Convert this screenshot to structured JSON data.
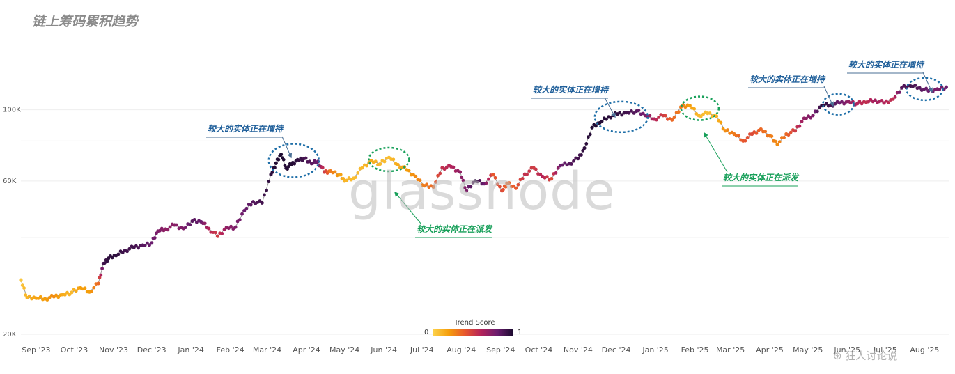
{
  "title": "链上筹码累积趋势",
  "watermark": "glassnode",
  "corner_mark": "⊛ 狂人讨论说",
  "legend": {
    "title": "Trend Score",
    "min_label": "0",
    "max_label": "1"
  },
  "chart_data": {
    "type": "scatter",
    "y_scale": "log",
    "ylim": [
      20000,
      130000
    ],
    "y_ticks": [
      {
        "value": 20000,
        "label": "20K"
      },
      {
        "value": 60000,
        "label": "60K"
      },
      {
        "value": 100000,
        "label": "100K"
      }
    ],
    "x_ticks": [
      "Sep '23",
      "Oct '23",
      "Nov '23",
      "Dec '23",
      "Jan '24",
      "Feb '24",
      "Mar '24",
      "Apr '24",
      "May '24",
      "Jun '24",
      "Jul '24",
      "Aug '24",
      "Sep '24",
      "Oct '24",
      "Nov '24",
      "Dec '24",
      "Jan '25",
      "Feb '25",
      "Mar '25",
      "Apr '25",
      "May '25",
      "Jun '25",
      "Jul '25",
      "Aug '25"
    ],
    "xlim": [
      "2023-08-20",
      "2025-08-20"
    ],
    "color_scale": [
      "#fcd34d",
      "#f59e0b",
      "#e8572d",
      "#b4235a",
      "#6b1c6e",
      "#1a0a2e"
    ],
    "series": [
      {
        "x": [
          "2023-08-20",
          "2023-08-25",
          "2023-09-01",
          "2023-09-08",
          "2023-09-15",
          "2023-09-22",
          "2023-09-29",
          "2023-10-06",
          "2023-10-13",
          "2023-10-20",
          "2023-10-24",
          "2023-10-28",
          "2023-11-03",
          "2023-11-10",
          "2023-11-17",
          "2023-11-24",
          "2023-12-01",
          "2023-12-06",
          "2023-12-12",
          "2023-12-19",
          "2023-12-26",
          "2024-01-02",
          "2024-01-09",
          "2024-01-15",
          "2024-01-22",
          "2024-01-29",
          "2024-02-05",
          "2024-02-12",
          "2024-02-19",
          "2024-02-26",
          "2024-03-04",
          "2024-03-08",
          "2024-03-12",
          "2024-03-16",
          "2024-03-20",
          "2024-03-25",
          "2024-03-30",
          "2024-04-05",
          "2024-04-10",
          "2024-04-15",
          "2024-04-20",
          "2024-04-27",
          "2024-05-01",
          "2024-05-08",
          "2024-05-15",
          "2024-05-22",
          "2024-05-29",
          "2024-06-05",
          "2024-06-12",
          "2024-06-19",
          "2024-06-26",
          "2024-07-03",
          "2024-07-10",
          "2024-07-17",
          "2024-07-24",
          "2024-07-31",
          "2024-08-05",
          "2024-08-12",
          "2024-08-19",
          "2024-08-26",
          "2024-09-02",
          "2024-09-06",
          "2024-09-13",
          "2024-09-20",
          "2024-09-27",
          "2024-10-04",
          "2024-10-11",
          "2024-10-18",
          "2024-10-25",
          "2024-11-01",
          "2024-11-06",
          "2024-11-12",
          "2024-11-18",
          "2024-11-25",
          "2024-12-02",
          "2024-12-09",
          "2024-12-17",
          "2024-12-24",
          "2024-12-31",
          "2025-01-07",
          "2025-01-14",
          "2025-01-21",
          "2025-01-28",
          "2025-02-04",
          "2025-02-11",
          "2025-02-18",
          "2025-02-25",
          "2025-03-04",
          "2025-03-11",
          "2025-03-18",
          "2025-03-25",
          "2025-04-01",
          "2025-04-07",
          "2025-04-14",
          "2025-04-21",
          "2025-04-28",
          "2025-05-05",
          "2025-05-12",
          "2025-05-19",
          "2025-05-26",
          "2025-06-02",
          "2025-06-09",
          "2025-06-16",
          "2025-06-23",
          "2025-06-30",
          "2025-07-07",
          "2025-07-14",
          "2025-07-21",
          "2025-07-28",
          "2025-08-04",
          "2025-08-11",
          "2025-08-18"
        ],
        "y": [
          29500,
          26000,
          25900,
          25800,
          26200,
          26600,
          27000,
          27900,
          27100,
          28800,
          33200,
          34500,
          35200,
          36500,
          37300,
          37900,
          38500,
          41900,
          42500,
          43800,
          42700,
          45000,
          44800,
          42700,
          40400,
          43000,
          43100,
          48500,
          51700,
          51300,
          62900,
          68200,
          72600,
          65800,
          67500,
          69900,
          70500,
          68000,
          69000,
          64000,
          64500,
          62800,
          60000,
          61200,
          66000,
          69500,
          67800,
          71000,
          67500,
          65000,
          62000,
          58000,
          57500,
          66000,
          66500,
          64000,
          56000,
          60000,
          58900,
          62800,
          56000,
          59000,
          57000,
          63000,
          65900,
          62000,
          61000,
          67000,
          68000,
          70500,
          76000,
          88000,
          91000,
          95000,
          97000,
          98000,
          99000,
          96000,
          93500,
          96000,
          93000,
          102000,
          103000,
          96000,
          97500,
          95500,
          86000,
          84000,
          80000,
          84000,
          87000,
          83000,
          78000,
          84000,
          86000,
          94000,
          96000,
          103000,
          103500,
          105000,
          106000,
          104500,
          105500,
          107000,
          105000,
          108000,
          117000,
          118500,
          117000,
          114500,
          116000,
          117500
        ],
        "score": [
          0.05,
          0.12,
          0.18,
          0.2,
          0.25,
          0.15,
          0.1,
          0.2,
          0.2,
          0.35,
          0.9,
          0.95,
          0.95,
          0.9,
          0.9,
          0.85,
          0.8,
          0.75,
          0.7,
          0.72,
          0.75,
          0.85,
          0.8,
          0.6,
          0.5,
          0.7,
          0.75,
          0.8,
          0.85,
          0.9,
          0.95,
          0.98,
          0.99,
          0.97,
          0.98,
          0.95,
          0.9,
          0.85,
          0.8,
          0.5,
          0.3,
          0.2,
          0.12,
          0.08,
          0.1,
          0.15,
          0.1,
          0.08,
          0.15,
          0.2,
          0.25,
          0.3,
          0.35,
          0.55,
          0.6,
          0.7,
          0.75,
          0.95,
          0.8,
          0.4,
          0.45,
          0.35,
          0.4,
          0.55,
          0.5,
          0.6,
          0.45,
          0.8,
          0.85,
          0.9,
          0.95,
          0.98,
          0.98,
          0.96,
          0.95,
          0.9,
          0.85,
          0.75,
          0.6,
          0.5,
          0.35,
          0.3,
          0.2,
          0.1,
          0.08,
          0.12,
          0.25,
          0.3,
          0.4,
          0.45,
          0.35,
          0.3,
          0.25,
          0.35,
          0.5,
          0.7,
          0.75,
          0.95,
          0.9,
          0.8,
          0.7,
          0.6,
          0.55,
          0.65,
          0.6,
          0.55,
          0.85,
          0.9,
          0.85,
          0.8,
          0.75,
          0.8
        ]
      }
    ],
    "annotations": [
      {
        "text": "较大的实体正在增持",
        "kind": "accumulating",
        "x": "2024-03-22",
        "y": 69500
      },
      {
        "text": "较大的实体正在派发",
        "kind": "distributing",
        "x": "2024-06-05",
        "y": 70000
      },
      {
        "text": "较大的实体正在增持",
        "kind": "accumulating",
        "x": "2024-12-05",
        "y": 95000
      },
      {
        "text": "较大的实体正在派发",
        "kind": "distributing",
        "x": "2025-02-05",
        "y": 101000
      },
      {
        "text": "较大的实体正在增持",
        "kind": "accumulating",
        "x": "2025-05-25",
        "y": 104000
      },
      {
        "text": "较大的实体正在增持",
        "kind": "accumulating",
        "x": "2025-08-01",
        "y": 116000
      }
    ]
  }
}
